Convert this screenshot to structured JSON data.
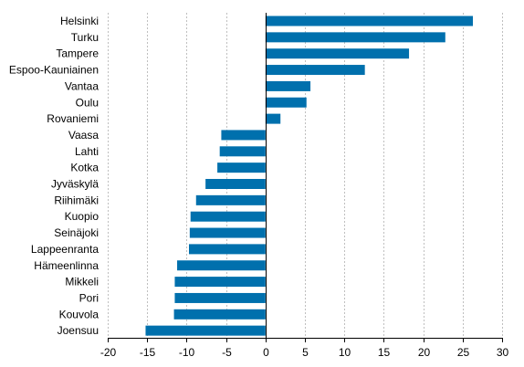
{
  "chart_data": {
    "type": "bar",
    "orientation": "horizontal",
    "title": "",
    "xlabel": "",
    "ylabel": "",
    "xlim": [
      -20,
      30
    ],
    "xticks": [
      -20,
      -15,
      -10,
      -5,
      0,
      5,
      10,
      15,
      20,
      25,
      30
    ],
    "grid": true,
    "legend": "none",
    "bar_color": "#0070ad",
    "categories": [
      "Helsinki",
      "Turku",
      "Tampere",
      "Espoo-Kauniainen",
      "Vantaa",
      "Oulu",
      "Rovaniemi",
      "Vaasa",
      "Lahti",
      "Kotka",
      "Jyväskylä",
      "Riihimäki",
      "Kuopio",
      "Seinäjoki",
      "Lappeenranta",
      "Hämeenlinna",
      "Mikkeli",
      "Pori",
      "Kouvola",
      "Joensuu"
    ],
    "values": [
      26.3,
      22.8,
      18.2,
      12.6,
      5.7,
      5.2,
      1.9,
      -5.6,
      -5.8,
      -6.1,
      -7.6,
      -8.8,
      -9.5,
      -9.6,
      -9.7,
      -11.2,
      -11.5,
      -11.5,
      -11.6,
      -15.2
    ]
  }
}
